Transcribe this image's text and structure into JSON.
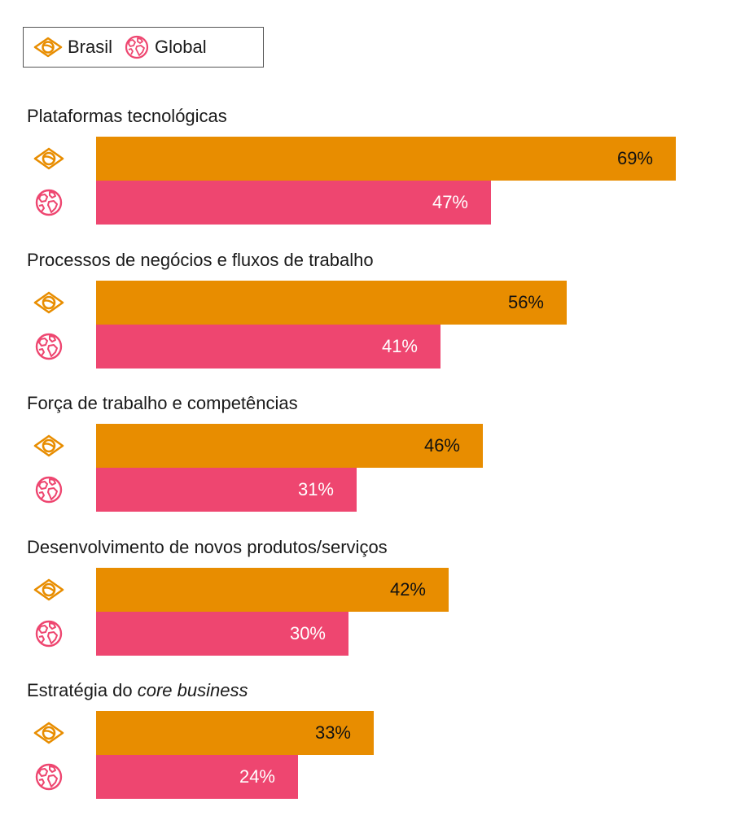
{
  "legend": {
    "items": [
      {
        "label": "Brasil",
        "icon": "brazil-flag-icon",
        "color": "#E88D00"
      },
      {
        "label": "Global",
        "icon": "globe-icon",
        "color": "#EE4670"
      }
    ]
  },
  "colors": {
    "brasil": "#E88D00",
    "global": "#EE4670",
    "brasil_text": "#111111",
    "global_text": "#ffffff"
  },
  "chart_data": {
    "type": "bar",
    "orientation": "horizontal",
    "categories": [
      "Plataformas tecnológicas",
      "Processos de negócios e fluxos de trabalho",
      "Força de trabalho e competências",
      "Desenvolvimento de novos produtos/serviços",
      "Estratégia do core business"
    ],
    "category_parts": [
      [
        {
          "text": "Plataformas tecnológicas",
          "italic": false
        }
      ],
      [
        {
          "text": "Processos de negócios e fluxos de trabalho",
          "italic": false
        }
      ],
      [
        {
          "text": "Força de trabalho e competências",
          "italic": false
        }
      ],
      [
        {
          "text": "Desenvolvimento de novos produtos/serviços",
          "italic": false
        }
      ],
      [
        {
          "text": "Estratégia do ",
          "italic": false
        },
        {
          "text": "core business",
          "italic": true
        }
      ]
    ],
    "series": [
      {
        "name": "Brasil",
        "values": [
          69,
          56,
          46,
          42,
          33
        ],
        "labels": [
          "69%",
          "56%",
          "46%",
          "42%",
          "33%"
        ]
      },
      {
        "name": "Global",
        "values": [
          47,
          41,
          31,
          30,
          24
        ],
        "labels": [
          "47%",
          "41%",
          "31%",
          "30%",
          "24%"
        ]
      }
    ],
    "unit": "%",
    "xlim": [
      0,
      100
    ],
    "grid": false,
    "legend_position": "top-left"
  }
}
